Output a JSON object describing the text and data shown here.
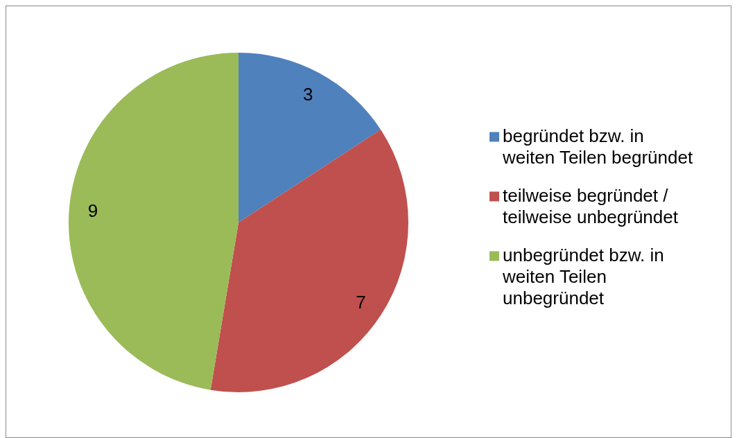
{
  "chart_data": {
    "type": "pie",
    "categories": [
      "begründet bzw. in weiten Teilen begründet",
      "teilweise begründet / teilweise unbegründet",
      "unbegründet bzw. in weiten Teilen unbegründet"
    ],
    "values": [
      3,
      7,
      9
    ],
    "colors": [
      "#4f81bd",
      "#c0504d",
      "#9bbb59"
    ],
    "data_labels": true,
    "legend": "right"
  }
}
